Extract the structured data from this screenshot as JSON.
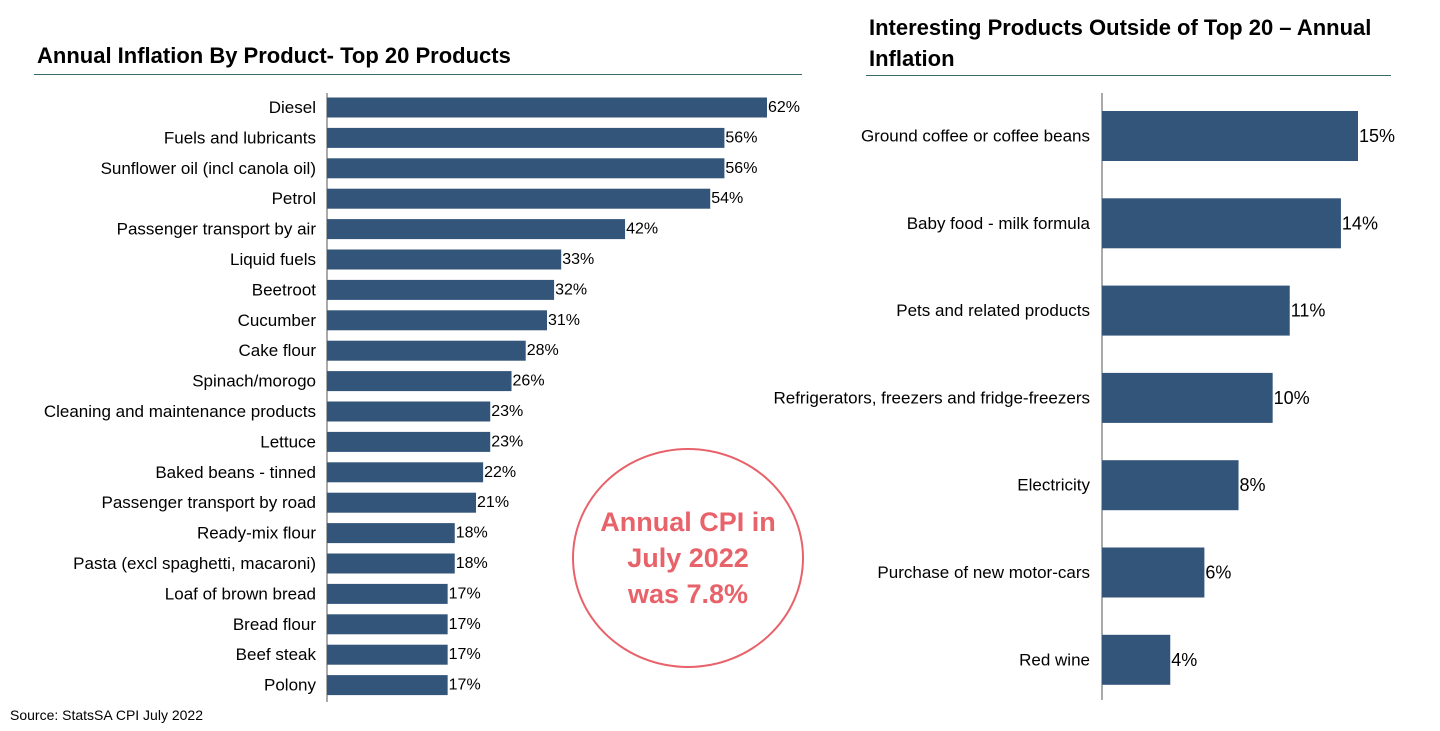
{
  "source": "Source: StatsSA CPI July 2022",
  "callout": "Annual CPI in July 2022 was 7.8%",
  "colors": {
    "bar": "#34557a",
    "callout": "#e8626a",
    "title_rule": "#3a6b6b"
  },
  "chart_data": [
    {
      "type": "bar",
      "orientation": "horizontal",
      "title": "Annual Inflation By Product- Top 20 Products",
      "xlabel": "",
      "ylabel": "",
      "xlim": [
        0,
        62
      ],
      "grid": false,
      "legend": "none",
      "categories": [
        "Diesel",
        "Fuels and lubricants",
        "Sunflower oil (incl canola oil)",
        "Petrol",
        "Passenger transport by air",
        "Liquid fuels",
        "Beetroot",
        "Cucumber",
        "Cake flour",
        "Spinach/morogo",
        "Cleaning and maintenance products",
        "Lettuce",
        "Baked beans - tinned",
        "Passenger transport by road",
        "Ready-mix flour",
        "Pasta (excl spaghetti, macaroni)",
        "Loaf of brown bread",
        "Bread flour",
        "Beef steak",
        "Polony"
      ],
      "values": [
        62,
        56,
        56,
        54,
        42,
        33,
        32,
        31,
        28,
        26,
        23,
        23,
        22,
        21,
        18,
        18,
        17,
        17,
        17,
        17
      ],
      "value_labels": [
        "62%",
        "56%",
        "56%",
        "54%",
        "42%",
        "33%",
        "32%",
        "31%",
        "28%",
        "26%",
        "23%",
        "23%",
        "22%",
        "21%",
        "18%",
        "18%",
        "17%",
        "17%",
        "17%",
        "17%"
      ]
    },
    {
      "type": "bar",
      "orientation": "horizontal",
      "title": "Interesting Products Outside of Top 20 – Annual Inflation",
      "xlabel": "",
      "ylabel": "",
      "xlim": [
        0,
        15
      ],
      "grid": false,
      "legend": "none",
      "categories": [
        "Ground coffee or coffee beans",
        "Baby food - milk formula",
        "Pets and related products",
        "Refrigerators, freezers and fridge-freezers",
        "Electricity",
        "Purchase of new motor-cars",
        "Red wine"
      ],
      "values": [
        15,
        14,
        11,
        10,
        8,
        6,
        4
      ],
      "value_labels": [
        "15%",
        "14%",
        "11%",
        "10%",
        "8%",
        "6%",
        "4%"
      ]
    }
  ]
}
